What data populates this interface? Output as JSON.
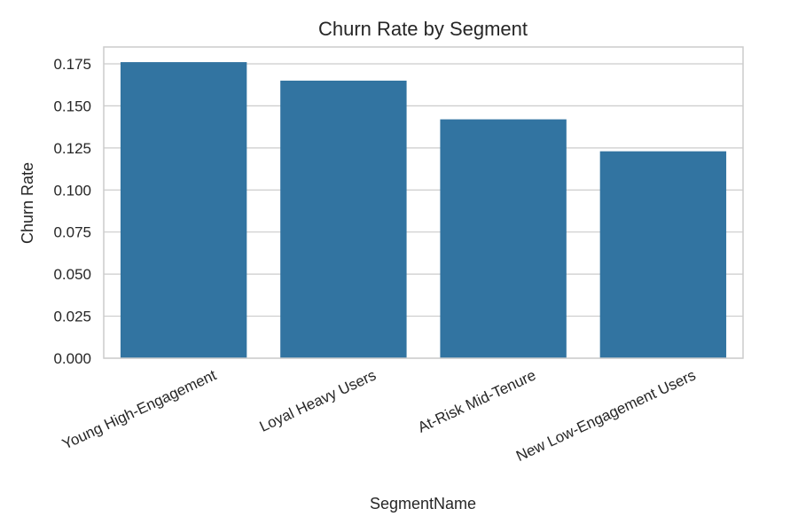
{
  "chart_data": {
    "type": "bar",
    "title": "Churn Rate by Segment",
    "xlabel": "SegmentName",
    "ylabel": "Churn Rate",
    "categories": [
      "Young High-Engagement",
      "Loyal Heavy Users",
      "At-Risk Mid-Tenure",
      "New Low-Engagement Users"
    ],
    "values": [
      0.176,
      0.165,
      0.142,
      0.123
    ],
    "ylim": [
      0,
      0.185
    ],
    "yticks": [
      "0.000",
      "0.025",
      "0.050",
      "0.075",
      "0.100",
      "0.125",
      "0.150",
      "0.175"
    ],
    "bar_color": "#3274a1",
    "grid": true,
    "legend": "none"
  }
}
